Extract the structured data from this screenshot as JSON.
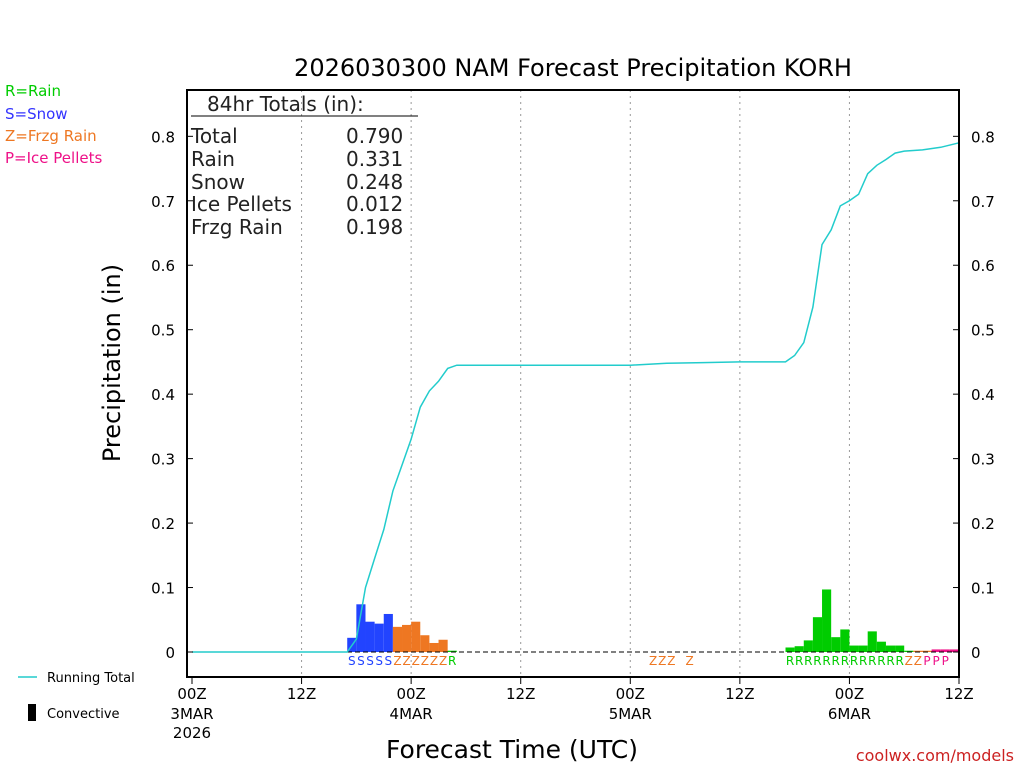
{
  "chart_data": {
    "type": "bar",
    "title": "2026030300 NAM Forecast Precipitation KORH",
    "xlabel": "Forecast Time (UTC)",
    "ylabel": "Precipitation (in)",
    "ylim": [
      0,
      0.87
    ],
    "xlim_hours": [
      0,
      84
    ],
    "y_ticks": [
      "0",
      "0.1",
      "0.2",
      "0.3",
      "0.4",
      "0.5",
      "0.6",
      "0.7",
      "0.8"
    ],
    "x_ticks": [
      {
        "hour": 0,
        "label": "00Z",
        "date": "3MAR",
        "year": "2026"
      },
      {
        "hour": 12,
        "label": "12Z",
        "date": "",
        "year": ""
      },
      {
        "hour": 24,
        "label": "00Z",
        "date": "4MAR",
        "year": ""
      },
      {
        "hour": 36,
        "label": "12Z",
        "date": "",
        "year": ""
      },
      {
        "hour": 48,
        "label": "00Z",
        "date": "5MAR",
        "year": ""
      },
      {
        "hour": 60,
        "label": "12Z",
        "date": "",
        "year": ""
      },
      {
        "hour": 72,
        "label": "00Z",
        "date": "6MAR",
        "year": ""
      },
      {
        "hour": 84,
        "label": "12Z",
        "date": "",
        "year": ""
      }
    ],
    "type_legend": [
      {
        "label": "R=Rain",
        "color": "#00cc00"
      },
      {
        "label": "S=Snow",
        "color": "#3333ff"
      },
      {
        "label": "Z=Frzg Rain",
        "color": "#ee7722"
      },
      {
        "label": "P=Ice Pellets",
        "color": "#ee1188"
      }
    ],
    "series_legend": {
      "running_total": "Running Total",
      "convective": "Convective"
    },
    "totals": {
      "heading": "84hr Totals (in):",
      "rows": [
        {
          "label": "Total",
          "value": "0.790"
        },
        {
          "label": "Rain",
          "value": "0.331"
        },
        {
          "label": "Snow",
          "value": "0.248"
        },
        {
          "label": "Ice Pellets",
          "value": "0.012"
        },
        {
          "label": "Frzg Rain",
          "value": "0.198"
        }
      ]
    },
    "type_colors": {
      "S": "#2244ff",
      "Z": "#ee7722",
      "R": "#00cc00",
      "P": "#ee1188"
    },
    "bars": [
      {
        "hour": 18,
        "value": 0.022,
        "type": "S"
      },
      {
        "hour": 19,
        "value": 0.074,
        "type": "S"
      },
      {
        "hour": 20,
        "value": 0.047,
        "type": "S"
      },
      {
        "hour": 21,
        "value": 0.044,
        "type": "S"
      },
      {
        "hour": 22,
        "value": 0.059,
        "type": "S"
      },
      {
        "hour": 23,
        "value": 0.039,
        "type": "Z"
      },
      {
        "hour": 24,
        "value": 0.042,
        "type": "Z"
      },
      {
        "hour": 25,
        "value": 0.047,
        "type": "Z"
      },
      {
        "hour": 26,
        "value": 0.026,
        "type": "Z"
      },
      {
        "hour": 27,
        "value": 0.014,
        "type": "Z"
      },
      {
        "hour": 28,
        "value": 0.019,
        "type": "Z"
      },
      {
        "hour": 29,
        "value": 0.002,
        "type": "R"
      },
      {
        "hour": 66,
        "value": 0.007,
        "type": "R"
      },
      {
        "hour": 67,
        "value": 0.009,
        "type": "R"
      },
      {
        "hour": 68,
        "value": 0.018,
        "type": "R"
      },
      {
        "hour": 69,
        "value": 0.054,
        "type": "R"
      },
      {
        "hour": 70,
        "value": 0.097,
        "type": "R"
      },
      {
        "hour": 71,
        "value": 0.023,
        "type": "R"
      },
      {
        "hour": 72,
        "value": 0.035,
        "type": "R"
      },
      {
        "hour": 73,
        "value": 0.01,
        "type": "R"
      },
      {
        "hour": 74,
        "value": 0.01,
        "type": "R"
      },
      {
        "hour": 75,
        "value": 0.032,
        "type": "R"
      },
      {
        "hour": 76,
        "value": 0.016,
        "type": "R"
      },
      {
        "hour": 77,
        "value": 0.01,
        "type": "R"
      },
      {
        "hour": 78,
        "value": 0.01,
        "type": "R"
      },
      {
        "hour": 79,
        "value": 0.002,
        "type": "R"
      },
      {
        "hour": 80,
        "value": 0.002,
        "type": "Z"
      },
      {
        "hour": 81,
        "value": 0.002,
        "type": "Z"
      },
      {
        "hour": 82,
        "value": 0.004,
        "type": "P"
      },
      {
        "hour": 83,
        "value": 0.004,
        "type": "P"
      },
      {
        "hour": 84,
        "value": 0.004,
        "type": "P"
      }
    ],
    "type_strings": [
      {
        "start_hour": 18.5,
        "text": "SSSSS",
        "type": "S"
      },
      {
        "start_hour": 23.5,
        "text": "ZZZZZZ",
        "type": "Z"
      },
      {
        "start_hour": 29.5,
        "text": "R",
        "type": "R"
      },
      {
        "start_hour": 51.5,
        "text": "ZZZ",
        "type": "Z"
      },
      {
        "start_hour": 55.5,
        "text": "Z",
        "type": "Z"
      },
      {
        "start_hour": 66.5,
        "text": "RRRRRRRRRRRRR",
        "type": "R"
      },
      {
        "start_hour": 79.5,
        "text": "ZZ",
        "type": "Z"
      },
      {
        "start_hour": 81.5,
        "text": "PPP",
        "type": "P"
      }
    ],
    "running_total": {
      "color": "#22cccc",
      "hours": [
        0,
        17,
        18,
        19,
        20,
        21,
        22,
        23,
        24,
        25,
        26,
        27,
        28,
        29,
        30,
        40,
        48,
        52,
        56,
        60,
        65,
        66,
        67,
        68,
        69,
        70,
        71,
        72,
        73,
        74,
        75,
        76,
        77,
        78,
        80,
        82,
        84
      ],
      "values": [
        0,
        0,
        0.02,
        0.1,
        0.145,
        0.19,
        0.25,
        0.29,
        0.33,
        0.38,
        0.405,
        0.42,
        0.44,
        0.445,
        0.445,
        0.445,
        0.445,
        0.448,
        0.449,
        0.45,
        0.45,
        0.46,
        0.48,
        0.535,
        0.632,
        0.655,
        0.692,
        0.7,
        0.71,
        0.742,
        0.755,
        0.764,
        0.774,
        0.777,
        0.779,
        0.783,
        0.79
      ]
    }
  },
  "watermark": "coolwx.com/models"
}
